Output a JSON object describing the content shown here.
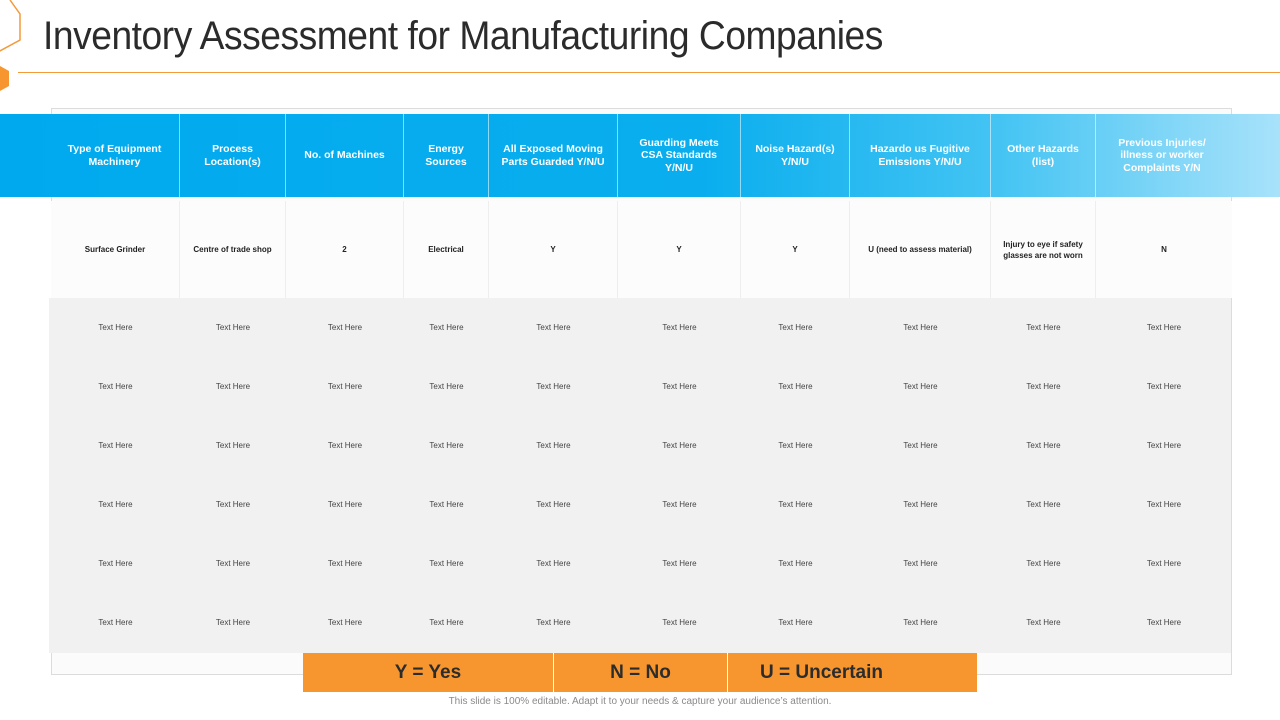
{
  "title": "Inventory Assessment for Manufacturing Companies",
  "colors": {
    "header_blue": "#00a9ee",
    "accent_orange": "#f7962f",
    "title_rule": "#f39a3b",
    "body_gray": "#f1f1f1"
  },
  "table": {
    "columns": [
      "Type of Equipment Machinery",
      "Process Location(s)",
      "No. of Machines",
      "Energy Sources",
      "All Exposed Moving Parts Guarded Y/N/U",
      "Guarding Meets CSA Standards Y/N/U",
      "Noise Hazard(s) Y/N/U",
      "Hazardo us Fugitive Emissions Y/N/U",
      "Other Hazards (list)",
      "Previous Injuries/ illness or worker Complaints Y/N"
    ],
    "rows": [
      [
        "Surface Grinder",
        "Centre of trade shop",
        "2",
        "Electrical",
        "Y",
        "Y",
        "Y",
        "U (need to assess material)",
        "Injury to eye if safety glasses are not worn",
        "N"
      ],
      [
        "Text Here",
        "Text Here",
        "Text Here",
        "Text Here",
        "Text Here",
        "Text Here",
        "Text Here",
        "Text Here",
        "Text Here",
        "Text Here"
      ],
      [
        "Text Here",
        "Text Here",
        "Text Here",
        "Text Here",
        "Text Here",
        "Text Here",
        "Text Here",
        "Text Here",
        "Text Here",
        "Text Here"
      ],
      [
        "Text Here",
        "Text Here",
        "Text Here",
        "Text Here",
        "Text Here",
        "Text Here",
        "Text Here",
        "Text Here",
        "Text Here",
        "Text Here"
      ],
      [
        "Text Here",
        "Text Here",
        "Text Here",
        "Text Here",
        "Text Here",
        "Text Here",
        "Text Here",
        "Text Here",
        "Text Here",
        "Text Here"
      ],
      [
        "Text Here",
        "Text Here",
        "Text Here",
        "Text Here",
        "Text Here",
        "Text Here",
        "Text Here",
        "Text Here",
        "Text Here",
        "Text Here"
      ],
      [
        "Text Here",
        "Text Here",
        "Text Here",
        "Text Here",
        "Text Here",
        "Text Here",
        "Text Here",
        "Text Here",
        "Text Here",
        "Text Here"
      ]
    ]
  },
  "legend": [
    "Y = Yes",
    "N = No",
    "U = Uncertain"
  ],
  "footer": "This slide is 100% editable. Adapt it to your needs & capture your audience’s attention."
}
